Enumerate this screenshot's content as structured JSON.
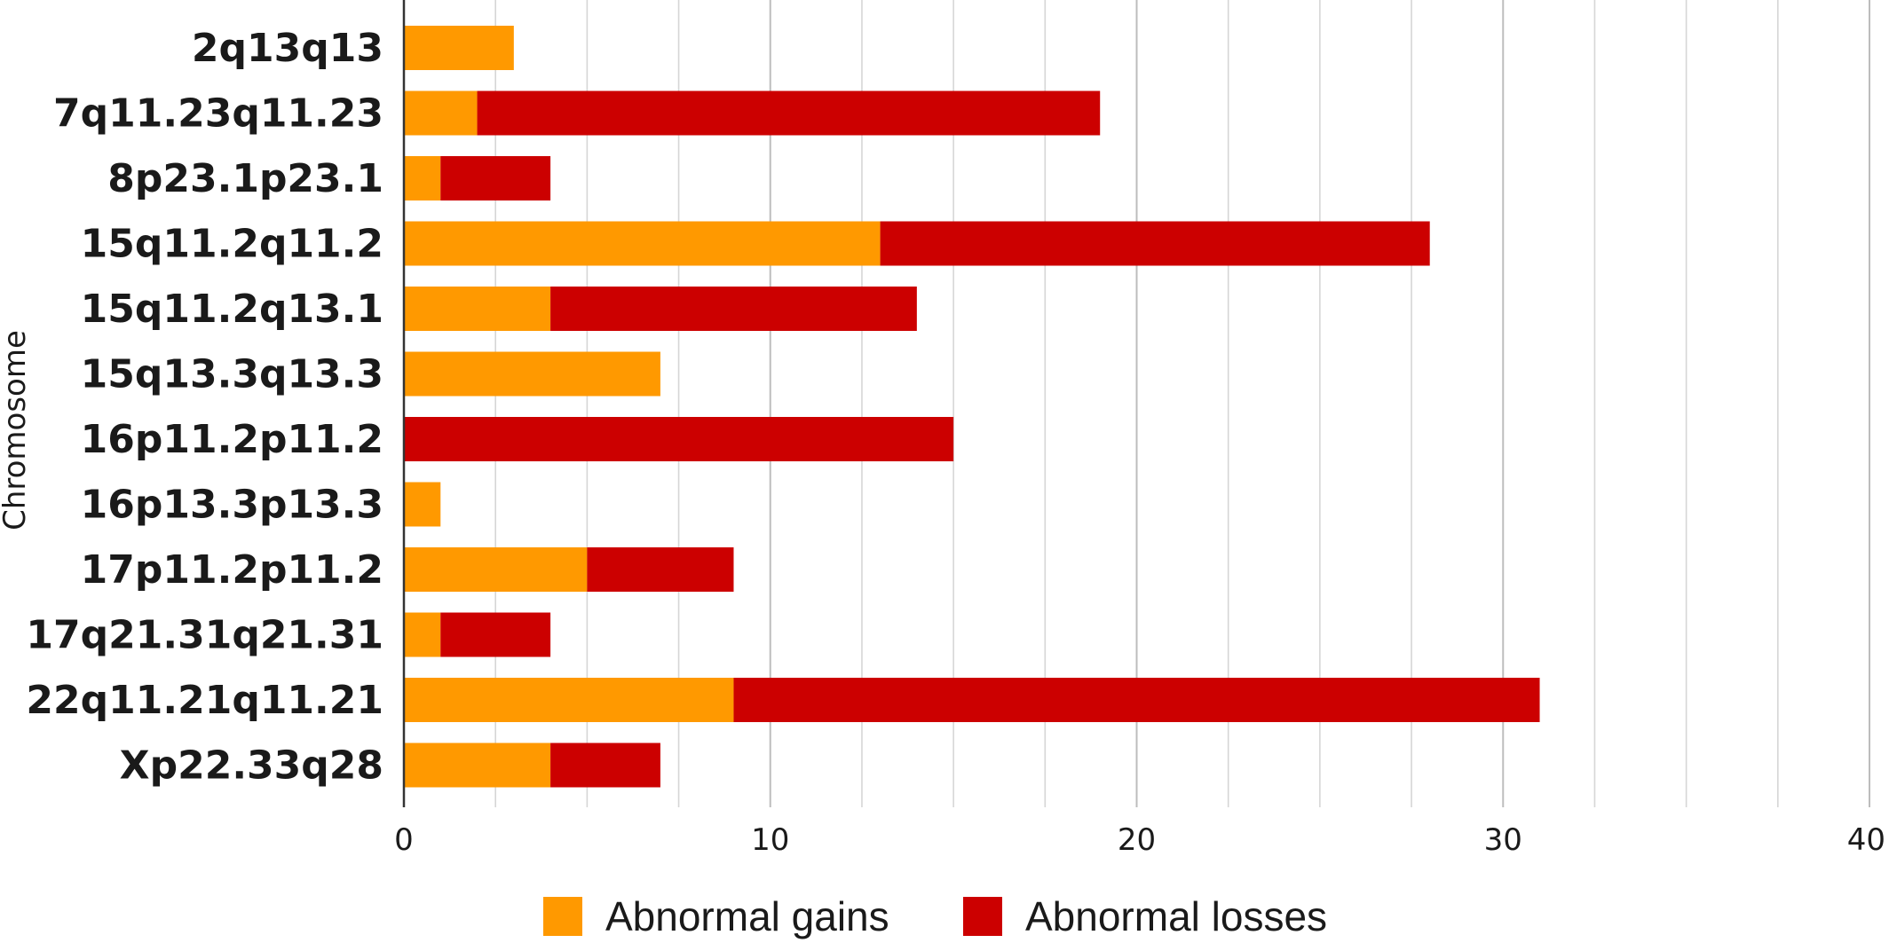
{
  "chart_data": {
    "type": "bar",
    "orientation": "horizontal",
    "stacked": true,
    "categories": [
      "2q13q13",
      "7q11.23q11.23",
      "8p23.1p23.1",
      "15q11.2q11.2",
      "15q11.2q13.1",
      "15q13.3q13.3",
      "16p11.2p11.2",
      "16p13.3p13.3",
      "17p11.2p11.2",
      "17q21.31q21.31",
      "22q11.21q11.21",
      "Xp22.33q28"
    ],
    "series": [
      {
        "name": "Abnormal gains",
        "color": "#ff9900",
        "values": [
          3,
          2,
          1,
          13,
          4,
          7,
          0,
          1,
          5,
          1,
          9,
          4
        ]
      },
      {
        "name": "Abnormal losses",
        "color": "#cc0000",
        "values": [
          0,
          17,
          3,
          15,
          10,
          0,
          15,
          0,
          4,
          3,
          22,
          3
        ]
      }
    ],
    "title": "",
    "xlabel": "",
    "ylabel": "Chromosome",
    "xlim": [
      0,
      40
    ],
    "x_ticks": [
      0,
      10,
      20,
      30,
      40
    ],
    "grid": "vertical",
    "legend_position": "bottom"
  }
}
